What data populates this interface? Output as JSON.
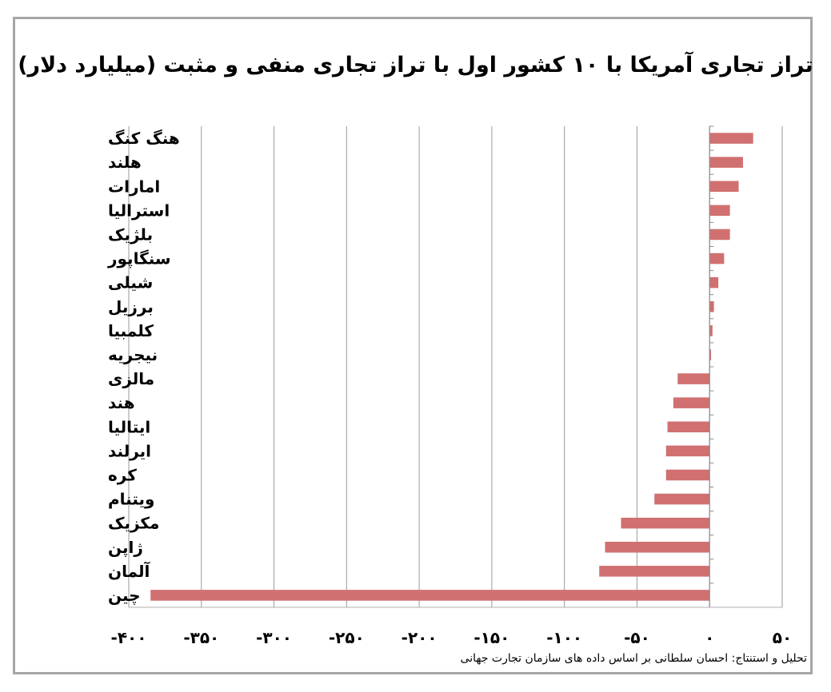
{
  "chart_data": {
    "type": "bar",
    "orientation": "horizontal",
    "title": "تراز تجاری آمریکا با ۱۰ کشور اول با تراز تجاری منفی و مثبت (میلیارد دلار)",
    "categories": [
      "هنگ کنگ",
      "هلند",
      "امارات",
      "استرالیا",
      "بلژیک",
      "سنگاپور",
      "شیلی",
      "برزیل",
      "کلمبیا",
      "نیجریه",
      "مالزی",
      "هند",
      "ایتالیا",
      "ایرلند",
      "کره",
      "ویتنام",
      "مکزیک",
      "ژاپن",
      "آلمان",
      "چین"
    ],
    "values": [
      30,
      23,
      20,
      14,
      14,
      10,
      6,
      3,
      2,
      1,
      -22,
      -25,
      -29,
      -30,
      -30,
      -38,
      -61,
      -72,
      -76,
      -385
    ],
    "xlim": [
      -400,
      50
    ],
    "xticks": [
      50,
      0,
      -50,
      -100,
      -150,
      -200,
      -250,
      -300,
      -350,
      -400
    ],
    "xtick_labels": [
      "۵۰",
      "۰",
      "-۵۰",
      "-۱۰۰",
      "-۱۵۰",
      "-۲۰۰",
      "-۲۵۰",
      "-۳۰۰",
      "-۳۵۰",
      "-۴۰۰"
    ],
    "grid": true,
    "bar_color": "#d07070"
  },
  "source_note": "تحلیل و استنتاج: احسان سلطانی بر اساس داده های سازمان تجارت جهانی"
}
